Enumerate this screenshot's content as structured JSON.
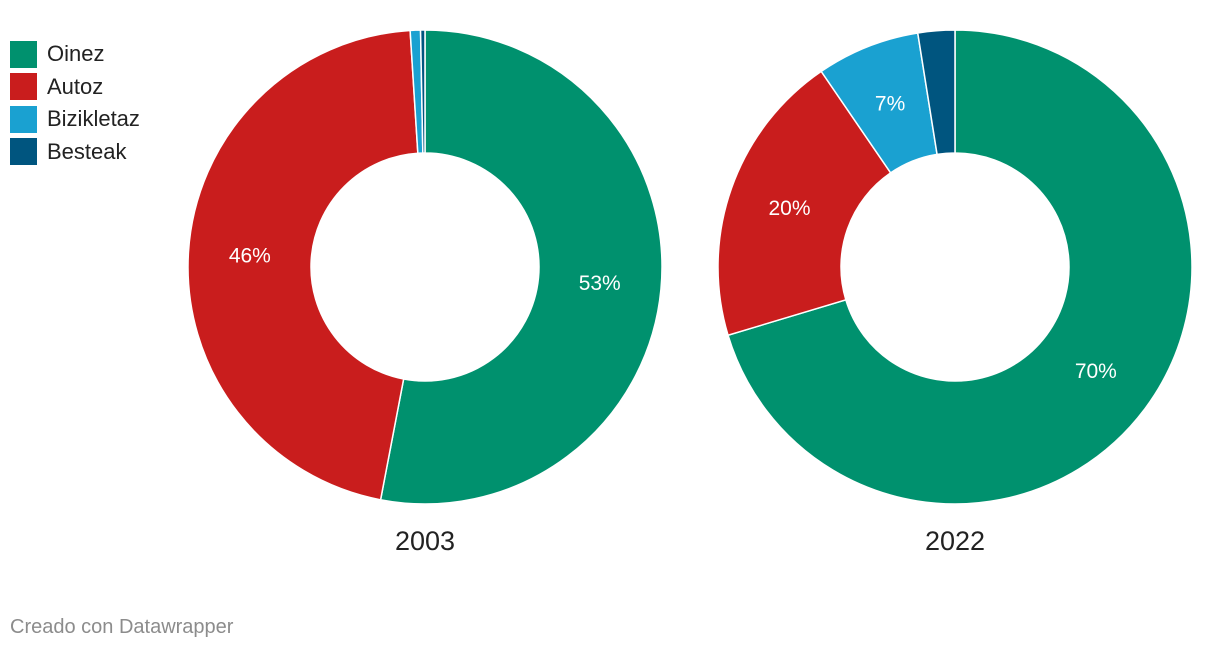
{
  "legend": [
    {
      "label": "Oinez",
      "color": "#00916e"
    },
    {
      "label": "Autoz",
      "color": "#c91d1d"
    },
    {
      "label": "Bizikletaz",
      "color": "#1aa1d1"
    },
    {
      "label": "Besteak",
      "color": "#00557f"
    }
  ],
  "footer": "Creado con Datawrapper",
  "chart_data": [
    {
      "type": "pie",
      "title": "2003",
      "categories": [
        "Oinez",
        "Autoz",
        "Bizikletaz",
        "Besteak"
      ],
      "values": [
        53,
        46,
        0.7,
        0.3
      ],
      "data_labels": [
        "53%",
        "46%",
        "",
        ""
      ],
      "colors": [
        "#00916e",
        "#c91d1d",
        "#1aa1d1",
        "#00557f"
      ]
    },
    {
      "type": "pie",
      "title": "2022",
      "categories": [
        "Oinez",
        "Autoz",
        "Bizikletaz",
        "Besteak"
      ],
      "values": [
        70,
        20,
        7,
        2.5
      ],
      "data_labels": [
        "70%",
        "20%",
        "7%",
        ""
      ],
      "colors": [
        "#00916e",
        "#c91d1d",
        "#1aa1d1",
        "#00557f"
      ]
    }
  ]
}
